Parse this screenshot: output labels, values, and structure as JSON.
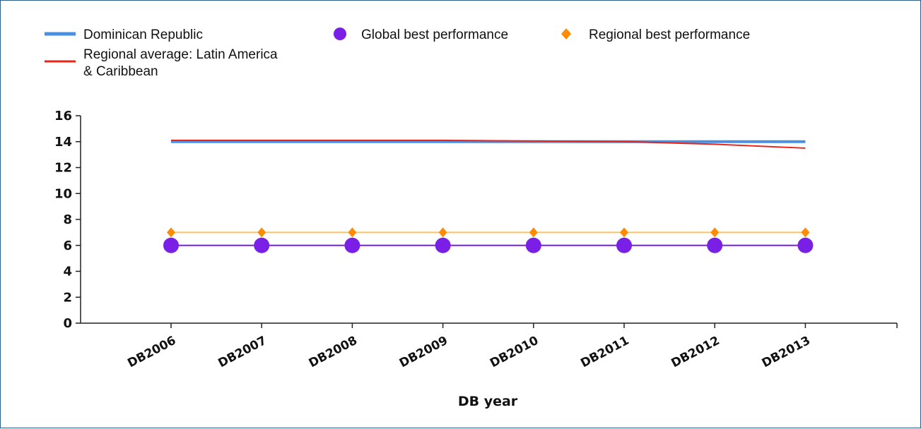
{
  "chart_data": {
    "type": "line",
    "xlabel": "DB year",
    "ylabel": "",
    "ylim": [
      0,
      16
    ],
    "yticks": [
      0,
      2,
      4,
      6,
      8,
      10,
      12,
      14,
      16
    ],
    "categories": [
      "DB2006",
      "DB2007",
      "DB2008",
      "DB2009",
      "DB2010",
      "DB2011",
      "DB2012",
      "DB2013"
    ],
    "legend_position": "top",
    "grid": false,
    "series": [
      {
        "name": "Dominican Republic",
        "color": "#4a90e2",
        "marker": "none",
        "values": [
          14,
          14,
          14,
          14,
          14,
          14,
          14,
          14
        ]
      },
      {
        "name": "Regional average: Latin America & Caribbean",
        "legend_lines": [
          "Regional average: Latin America",
          "& Caribbean"
        ],
        "color": "#e8231a",
        "marker": "none",
        "values": [
          14.1,
          14.1,
          14.1,
          14.1,
          14.05,
          14.0,
          13.8,
          13.5
        ]
      },
      {
        "name": "Global best performance",
        "color": "#7a1fe6",
        "marker": "circle",
        "values": [
          6,
          6,
          6,
          6,
          6,
          6,
          6,
          6
        ]
      },
      {
        "name": "Regional best performance",
        "color": "#ff8c00",
        "line_color": "#ffc060",
        "marker": "diamond",
        "values": [
          7,
          7,
          7,
          7,
          7,
          7,
          7,
          7
        ]
      }
    ]
  }
}
